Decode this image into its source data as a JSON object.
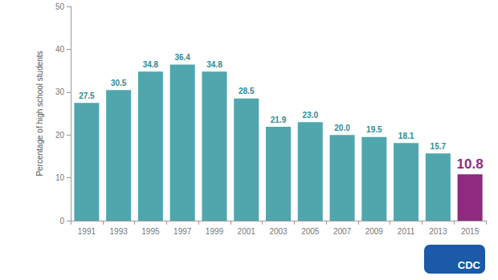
{
  "chart_data": {
    "type": "bar",
    "y_label": "Percentage of high school students",
    "categories": [
      "1991",
      "1993",
      "1995",
      "1997",
      "1999",
      "2001",
      "2003",
      "2005",
      "2007",
      "2009",
      "2011",
      "2013",
      "2015"
    ],
    "values": [
      27.5,
      30.5,
      34.8,
      36.4,
      34.8,
      28.5,
      21.9,
      23.0,
      20.0,
      19.5,
      18.1,
      15.7,
      10.8
    ],
    "value_labels": [
      "27.5",
      "30.5",
      "34.8",
      "36.4",
      "34.8",
      "28.5",
      "21.9",
      "23.0",
      "20.0",
      "19.5",
      "18.1",
      "15.7",
      "10.8"
    ],
    "colors": [
      "#4fa7ad",
      "#4fa7ad",
      "#4fa7ad",
      "#4fa7ad",
      "#4fa7ad",
      "#4fa7ad",
      "#4fa7ad",
      "#4fa7ad",
      "#4fa7ad",
      "#4fa7ad",
      "#4fa7ad",
      "#4fa7ad",
      "#8e2a7f"
    ],
    "data_labels": true,
    "grid": false,
    "ylim": [
      0,
      50
    ],
    "yticks": [
      0,
      10,
      20,
      30,
      40,
      50
    ],
    "annotations": [
      "CDC"
    ]
  }
}
